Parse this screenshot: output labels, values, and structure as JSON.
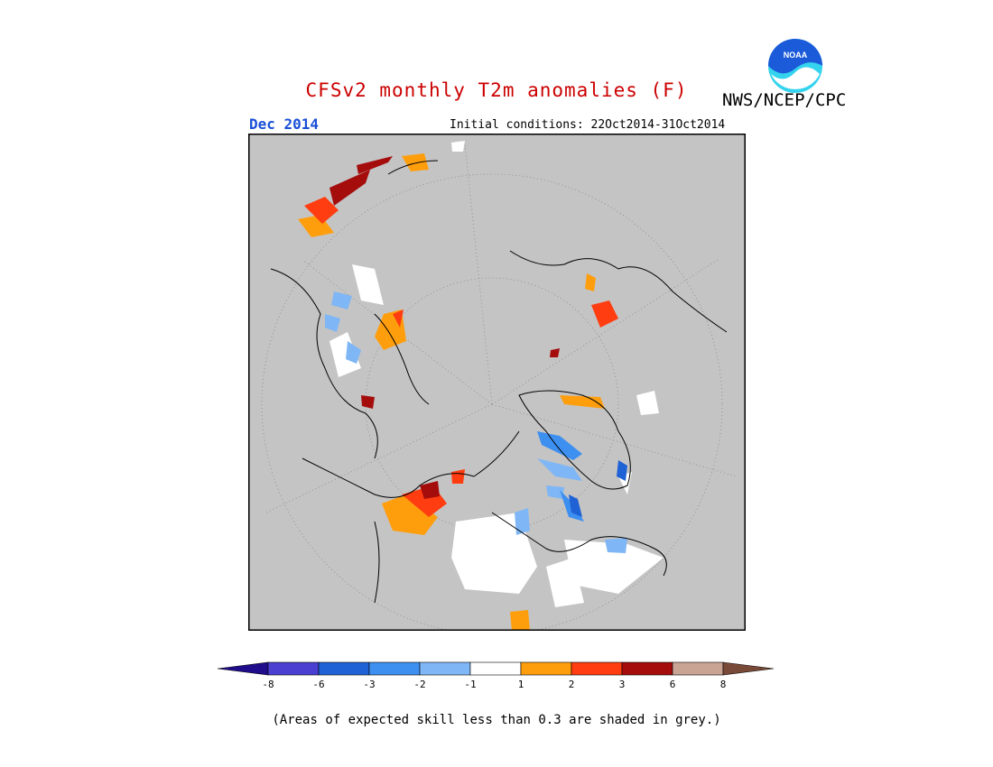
{
  "header": {
    "title": "CFSv2 monthly T2m anomalies (F)",
    "agency": "NWS/NCEP/CPC",
    "logo_text": "NOAA",
    "month": "Dec 2014",
    "initial_conditions": "Initial conditions: 22Oct2014-31Oct2014"
  },
  "colors": {
    "title": "#cc0000",
    "month": "#1a4fd6",
    "land_grey": "#c4c4c4",
    "no_skill_white": "#ffffff",
    "logo_blue": "#1b5bd9",
    "logo_cyan": "#34d3ee"
  },
  "legend": {
    "boundaries": [
      "-8",
      "-6",
      "-3",
      "-2",
      "-1",
      "1",
      "2",
      "3",
      "6",
      "8"
    ],
    "bins": [
      {
        "color": "#1f0d8c"
      },
      {
        "color": "#4a3fd0"
      },
      {
        "color": "#1f62d6"
      },
      {
        "color": "#3d8ff0"
      },
      {
        "color": "#7fb6f5"
      },
      {
        "color": "#ffffff"
      },
      {
        "color": "#ff9e0d"
      },
      {
        "color": "#ff3d10"
      },
      {
        "color": "#a50c0c"
      },
      {
        "color": "#c9a393"
      },
      {
        "color": "#7a4a38"
      }
    ]
  },
  "footer_note": "(Areas of expected skill less than 0.3 are shaded in grey.)"
}
